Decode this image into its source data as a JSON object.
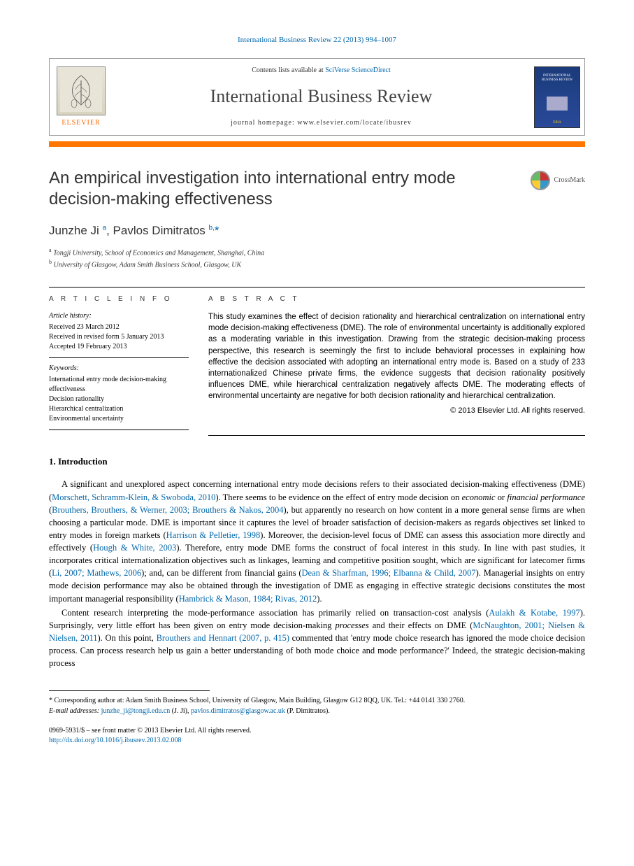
{
  "citation": "International Business Review 22 (2013) 994–1007",
  "header": {
    "contents_prefix": "Contents lists available at ",
    "contents_link": "SciVerse ScienceDirect",
    "journal_name": "International Business Review",
    "homepage_prefix": "journal homepage: ",
    "homepage_url": "www.elsevier.com/locate/ibusrev",
    "publisher": "ELSEVIER",
    "cover_text": "INTERNATIONAL BUSINESS REVIEW"
  },
  "crossmark_label": "CrossMark",
  "title": "An empirical investigation into international entry mode decision-making effectiveness",
  "authors_html": "Junzhe Ji <sup>a</sup>, Pavlos Dimitratos <sup>b,</sup><span class='star'>*</span>",
  "affiliations": {
    "a": "Tongji University, School of Economics and Management, Shanghai, China",
    "b": "University of Glasgow, Adam Smith Business School, Glasgow, UK"
  },
  "article_info": {
    "heading": "A R T I C L E  I N F O",
    "history_label": "Article history:",
    "received": "Received 23 March 2012",
    "revised": "Received in revised form 5 January 2013",
    "accepted": "Accepted 19 February 2013",
    "keywords_label": "Keywords:",
    "keywords": [
      "International entry mode decision-making effectiveness",
      "Decision rationality",
      "Hierarchical centralization",
      "Environmental uncertainty"
    ]
  },
  "abstract": {
    "heading": "A B S T R A C T",
    "text": "This study examines the effect of decision rationality and hierarchical centralization on international entry mode decision-making effectiveness (DME). The role of environmental uncertainty is additionally explored as a moderating variable in this investigation. Drawing from the strategic decision-making process perspective, this research is seemingly the first to include behavioral processes in explaining how effective the decision associated with adopting an international entry mode is. Based on a study of 233 internationalized Chinese private firms, the evidence suggests that decision rationality positively influences DME, while hierarchical centralization negatively affects DME. The moderating effects of environmental uncertainty are negative for both decision rationality and hierarchical centralization.",
    "copyright": "© 2013 Elsevier Ltd. All rights reserved."
  },
  "section1": {
    "heading": "1. Introduction",
    "para1_parts": [
      "A significant and unexplored aspect concerning international entry mode decisions refers to their associated decision-making effectiveness (DME) (",
      "Morschett, Schramm-Klein, & Swoboda, 2010",
      "). There seems to be evidence on the effect of entry mode decision on ",
      "economic",
      " or ",
      "financial performance",
      " (",
      "Brouthers, Brouthers, & Werner, 2003; Brouthers & Nakos, 2004",
      "), but apparently no research on how content in a more general sense firms are when choosing a particular mode. DME is important since it captures the level of broader satisfaction of decision-makers as regards objectives set linked to entry modes in foreign markets (",
      "Harrison & Pelletier, 1998",
      "). Moreover, the decision-level focus of DME can assess this association more directly and effectively (",
      "Hough & White, 2003",
      "). Therefore, entry mode DME forms the construct of focal interest in this study. In line with past studies, it incorporates critical internationalization objectives such as linkages, learning and competitive position sought, which are significant for latecomer firms (",
      "Li, 2007; Mathews, 2006",
      "); and, can be different from financial gains (",
      "Dean & Sharfman, 1996; Elbanna & Child, 2007",
      "). Managerial insights on entry mode decision performance may also be obtained through the investigation of DME as engaging in effective strategic decisions constitutes the most important managerial responsibility (",
      "Hambrick & Mason, 1984; Rivas, 2012",
      ")."
    ],
    "para2_parts": [
      "Content research interpreting the mode-performance association has primarily relied on transaction-cost analysis (",
      "Aulakh & Kotabe, 1997",
      "). Surprisingly, very little effort has been given on entry mode decision-making ",
      "processes",
      " and their effects on DME (",
      "McNaughton, 2001; Nielsen & Nielsen, 2011",
      "). On this point, ",
      "Brouthers and Hennart (2007, p. 415)",
      " commented that 'entry mode choice research has ignored the mode choice decision process. Can process research help us gain a better understanding of both mode choice and mode performance?' Indeed, the strategic decision-making process"
    ]
  },
  "footnote": {
    "corr": "* Corresponding author at: Adam Smith Business School, University of Glasgow, Main Building, Glasgow G12 8QQ, UK. Tel.: +44 0141 330 2760.",
    "emails_label": "E-mail addresses: ",
    "email1": "junzhe_ji@tongji.edu.cn",
    "email1_who": " (J. Ji), ",
    "email2": "pavlos.dimitratos@glasgow.ac.uk",
    "email2_who": " (P. Dimitratos)."
  },
  "footer": {
    "issn": "0969-5931/$ – see front matter © 2013 Elsevier Ltd. All rights reserved.",
    "doi": "http://dx.doi.org/10.1016/j.ibusrev.2013.02.008"
  },
  "colors": {
    "link": "#0066aa",
    "orange": "#ff7700",
    "elsevier_orange": "#ff6600"
  }
}
